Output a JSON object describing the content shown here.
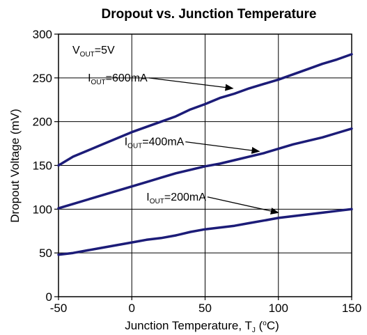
{
  "chart_data": {
    "type": "line",
    "title": "Dropout vs. Junction Temperature",
    "xlabel": {
      "prefix": "Junction Temperature, T",
      "sub": "J",
      "mid": " (",
      "sup": "o",
      "suffix": "C)"
    },
    "ylabel": "Dropout Voltage (mV)",
    "xlim": [
      -50,
      150
    ],
    "ylim": [
      0,
      300
    ],
    "x_ticks": [
      -50,
      0,
      50,
      100,
      150
    ],
    "y_ticks": [
      0,
      50,
      100,
      150,
      200,
      250,
      300
    ],
    "grid": true,
    "line_color": "#1c1c78",
    "condition": {
      "prefix": "V",
      "sub": "OUT",
      "suffix": "=5V"
    },
    "series": [
      {
        "name": "IOUT=600mA",
        "label": {
          "prefix": "I",
          "sub": "OUT",
          "suffix": "=600mA"
        },
        "x": [
          -50,
          -40,
          -30,
          -20,
          -10,
          0,
          10,
          20,
          30,
          40,
          50,
          60,
          70,
          80,
          90,
          100,
          110,
          120,
          130,
          140,
          150
        ],
        "values": [
          150,
          160,
          167,
          174,
          181,
          188,
          194,
          200,
          206,
          214,
          220,
          227,
          232,
          238,
          243,
          248,
          254,
          260,
          266,
          271,
          277
        ]
      },
      {
        "name": "IOUT=400mA",
        "label": {
          "prefix": "I",
          "sub": "OUT",
          "suffix": "=400mA"
        },
        "x": [
          -50,
          -40,
          -30,
          -20,
          -10,
          0,
          10,
          20,
          30,
          40,
          50,
          60,
          70,
          80,
          90,
          100,
          110,
          120,
          130,
          140,
          150
        ],
        "values": [
          101,
          106,
          111,
          116,
          121,
          126,
          131,
          136,
          141,
          145,
          149,
          152,
          156,
          160,
          164,
          169,
          174,
          178,
          182,
          187,
          192
        ]
      },
      {
        "name": "IOUT=200mA",
        "label": {
          "prefix": "I",
          "sub": "OUT",
          "suffix": "=200mA"
        },
        "x": [
          -50,
          -40,
          -30,
          -20,
          -10,
          0,
          10,
          20,
          30,
          40,
          50,
          60,
          70,
          80,
          90,
          100,
          110,
          120,
          130,
          140,
          150
        ],
        "values": [
          48,
          50,
          53,
          56,
          59,
          62,
          65,
          67,
          70,
          74,
          77,
          79,
          81,
          84,
          87,
          90,
          92,
          94,
          96,
          98,
          100
        ]
      }
    ],
    "annotations": [
      {
        "series": 0,
        "label_x": -30,
        "label_y": 246,
        "arrow_to_x": 69,
        "arrow_to_y": 238
      },
      {
        "series": 1,
        "label_x": -5,
        "label_y": 173,
        "arrow_to_x": 87,
        "arrow_to_y": 166
      },
      {
        "series": 2,
        "label_x": 10,
        "label_y": 110,
        "arrow_to_x": 100,
        "arrow_to_y": 96
      }
    ]
  }
}
